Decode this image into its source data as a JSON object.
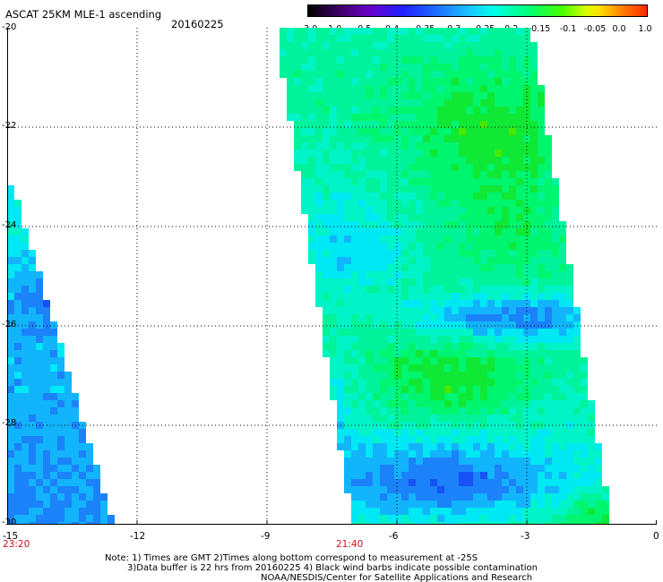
{
  "header": {
    "title": "ASCAT 25KM MLE-1 ascending",
    "date": "20160225"
  },
  "colorbar": {
    "labels": [
      "-3.0",
      "-1.0",
      "-0.5",
      "-0.4",
      "-0.35",
      "-0.3",
      "-0.25",
      "-0.2",
      "-0.15",
      "-0.1",
      "-0.05",
      "0.0",
      "1.0"
    ]
  },
  "map": {
    "x_tick_labels": [
      "-15",
      "-12",
      "-9",
      "-6",
      "-3",
      "0"
    ],
    "y_tick_labels": [
      "-20",
      "-22",
      "-24",
      "-26",
      "-28",
      "-30"
    ],
    "time_labels": [
      "23:20",
      "21:40"
    ],
    "grid": "dotted",
    "swath_colors": [
      "#0828e6",
      "#1652f5",
      "#1c82fa",
      "#12b4fb",
      "#00e8f4",
      "#00f4c8",
      "#00f39a",
      "#00f56e",
      "#10e836",
      "#48e800"
    ]
  },
  "notes": {
    "line1": "Note: 1) Times are GMT 2)Times along bottom correspond to measurement at -25S",
    "line2": "3)Data buffer is 22 hrs from 20160225 4) Black wind barbs indicate possible contamination",
    "line3": "NOAA/NESDIS/Center for Satellite Applications and Research"
  }
}
